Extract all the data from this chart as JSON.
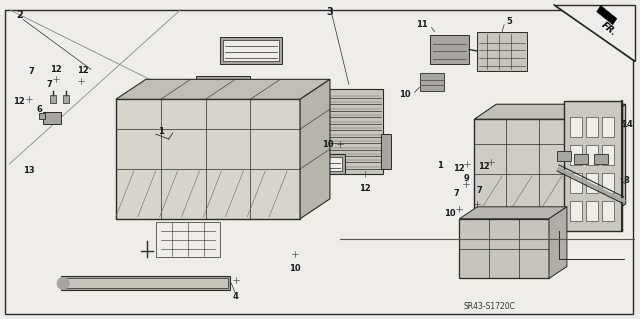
{
  "bg_color": "#f0ede8",
  "line_color": "#2a2a2a",
  "text_color": "#1a1a1a",
  "part_number": "SR43-S1720C",
  "fig_size": [
    6.4,
    3.19
  ],
  "dpi": 100,
  "gray_light": "#c8c4bc",
  "gray_mid": "#a8a4a0",
  "gray_dark": "#787470"
}
